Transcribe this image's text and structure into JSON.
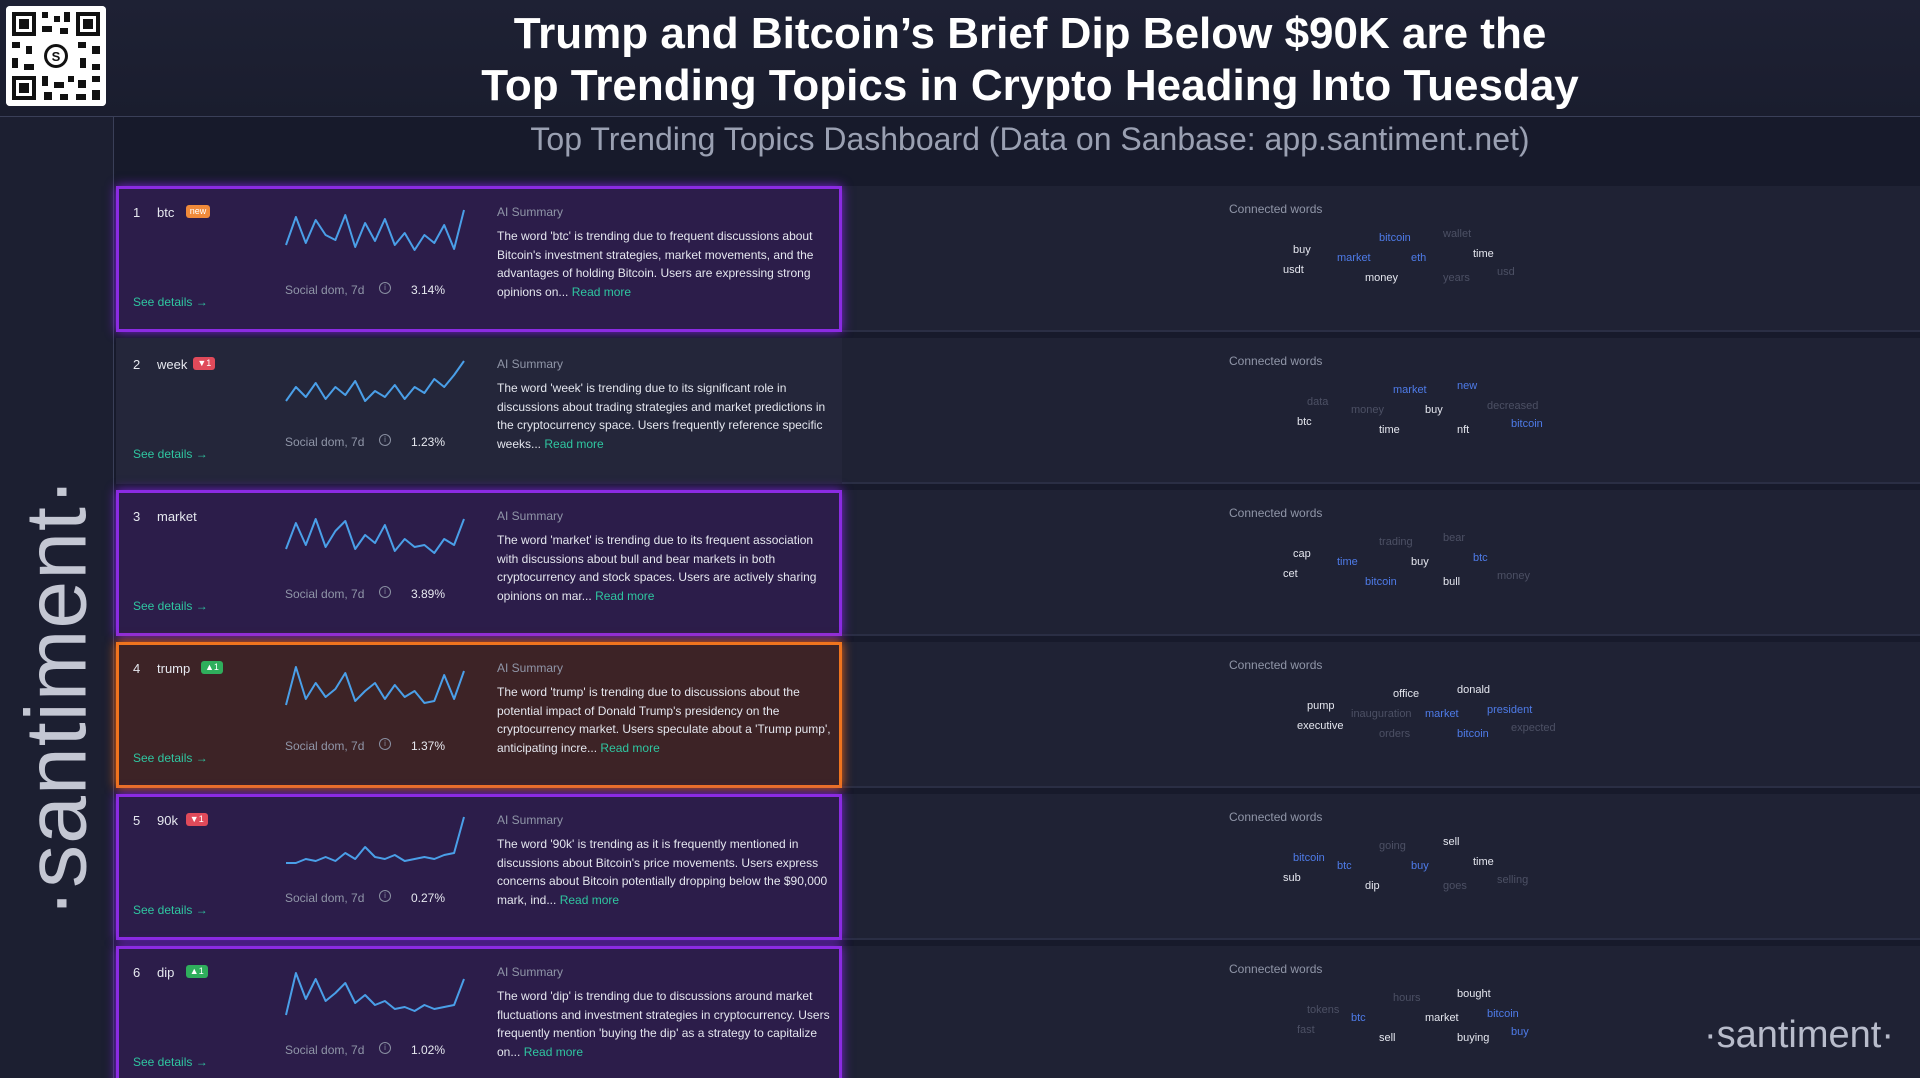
{
  "header": {
    "title_line1": "Trump and Bitcoin’s Brief Dip Below $90K are the",
    "title_line2": "Top Trending Topics in Crypto Heading Into Tuesday",
    "subtitle": "Top Trending Topics Dashboard (Data on Sanbase: app.santiment.net)"
  },
  "brand": {
    "sidebar": "·santiment·",
    "corner": "·santiment·"
  },
  "labels": {
    "ai_summary": "AI Summary",
    "connected_words": "Connected words",
    "social_dom": "Social dom, 7d",
    "see_details": "See details →",
    "read_more": "Read more"
  },
  "colors": {
    "accent_purple": "#8b2be2",
    "accent_orange": "#f0741e",
    "link": "#2fc6a0",
    "word_blue": "#4e7be8"
  },
  "topics": [
    {
      "rank": "1",
      "word": "btc",
      "badge": "new",
      "badge_type": "new",
      "social_dom": "3.14%",
      "highlight": "purple",
      "summary": "The word 'btc' is trending due to frequent discussions about Bitcoin's investment strategies, market movements, and the advantages of holding Bitcoin. Users are expressing strong opinions on...",
      "spark": [
        40,
        12,
        38,
        15,
        30,
        35,
        10,
        42,
        18,
        36,
        14,
        40,
        28,
        45,
        30,
        38,
        20,
        44,
        5
      ],
      "words": [
        {
          "t": "bitcoin",
          "c": "b"
        },
        {
          "t": "wallet",
          "c": "d"
        },
        {
          "t": "buy",
          "c": "w"
        },
        {
          "t": "time",
          "c": "w"
        },
        {
          "t": "market",
          "c": "b"
        },
        {
          "t": "eth",
          "c": "b"
        },
        {
          "t": "usdt",
          "c": "w"
        },
        {
          "t": "usd",
          "c": "d"
        },
        {
          "t": "money",
          "c": "w"
        },
        {
          "t": "years",
          "c": "d"
        }
      ]
    },
    {
      "rank": "2",
      "word": "week",
      "badge": "▼1",
      "badge_type": "down",
      "social_dom": "1.23%",
      "highlight": "none",
      "summary": "The word 'week' is trending due to its significant role in discussions about trading strategies and market predictions in the cryptocurrency space. Users frequently reference specific weeks...",
      "spark": [
        44,
        30,
        40,
        26,
        42,
        30,
        38,
        24,
        44,
        34,
        40,
        28,
        42,
        30,
        36,
        22,
        30,
        18,
        4
      ],
      "words": [
        {
          "t": "market",
          "c": "b"
        },
        {
          "t": "new",
          "c": "b"
        },
        {
          "t": "data",
          "c": "d"
        },
        {
          "t": "decreased",
          "c": "d"
        },
        {
          "t": "money",
          "c": "d"
        },
        {
          "t": "buy",
          "c": "w"
        },
        {
          "t": "btc",
          "c": "w"
        },
        {
          "t": "bitcoin",
          "c": "b"
        },
        {
          "t": "time",
          "c": "w"
        },
        {
          "t": "nft",
          "c": "w"
        }
      ]
    },
    {
      "rank": "3",
      "word": "market",
      "badge": "",
      "badge_type": "none",
      "social_dom": "3.89%",
      "highlight": "purple",
      "summary": "The word 'market' is trending due to its frequent association with discussions about bull and bear markets in both cryptocurrency and stock spaces. Users are actively sharing opinions on mar...",
      "spark": [
        40,
        14,
        36,
        10,
        38,
        22,
        12,
        40,
        26,
        34,
        16,
        42,
        30,
        38,
        36,
        44,
        30,
        36,
        10
      ],
      "words": [
        {
          "t": "trading",
          "c": "d"
        },
        {
          "t": "bear",
          "c": "d"
        },
        {
          "t": "cap",
          "c": "w"
        },
        {
          "t": "btc",
          "c": "b"
        },
        {
          "t": "time",
          "c": "b"
        },
        {
          "t": "buy",
          "c": "w"
        },
        {
          "t": "cet",
          "c": "w"
        },
        {
          "t": "money",
          "c": "d"
        },
        {
          "t": "bitcoin",
          "c": "b"
        },
        {
          "t": "bull",
          "c": "w"
        }
      ]
    },
    {
      "rank": "4",
      "word": "trump",
      "badge": "▲1",
      "badge_type": "up",
      "social_dom": "1.37%",
      "highlight": "orange",
      "summary": "The word 'trump' is trending due to discussions about the potential impact of Donald Trump's presidency on the cryptocurrency market. Users speculate about a 'Trump pump', anticipating incre...",
      "spark": [
        44,
        6,
        38,
        22,
        36,
        28,
        12,
        40,
        30,
        22,
        38,
        24,
        36,
        30,
        42,
        40,
        14,
        38,
        10
      ],
      "words": [
        {
          "t": "office",
          "c": "w"
        },
        {
          "t": "donald",
          "c": "w"
        },
        {
          "t": "pump",
          "c": "w"
        },
        {
          "t": "president",
          "c": "b"
        },
        {
          "t": "inauguration",
          "c": "d"
        },
        {
          "t": "market",
          "c": "b"
        },
        {
          "t": "executive",
          "c": "w"
        },
        {
          "t": "expected",
          "c": "d"
        },
        {
          "t": "orders",
          "c": "d"
        },
        {
          "t": "bitcoin",
          "c": "b"
        }
      ]
    },
    {
      "rank": "5",
      "word": "90k",
      "badge": "▼1",
      "badge_type": "down",
      "social_dom": "0.27%",
      "highlight": "purple",
      "summary": "The word '90k' is trending as it is frequently mentioned in discussions about Bitcoin's price movements. Users express concerns about Bitcoin potentially dropping below the $90,000 mark, ind...",
      "spark": [
        50,
        50,
        46,
        48,
        44,
        48,
        40,
        46,
        34,
        44,
        46,
        42,
        48,
        46,
        44,
        46,
        42,
        40,
        4
      ],
      "words": [
        {
          "t": "going",
          "c": "d"
        },
        {
          "t": "sell",
          "c": "w"
        },
        {
          "t": "bitcoin",
          "c": "b"
        },
        {
          "t": "time",
          "c": "w"
        },
        {
          "t": "btc",
          "c": "b"
        },
        {
          "t": "buy",
          "c": "b"
        },
        {
          "t": "sub",
          "c": "w"
        },
        {
          "t": "selling",
          "c": "d"
        },
        {
          "t": "dip",
          "c": "w"
        },
        {
          "t": "goes",
          "c": "d"
        }
      ]
    },
    {
      "rank": "6",
      "word": "dip",
      "badge": "▲1",
      "badge_type": "up",
      "social_dom": "1.02%",
      "highlight": "purple",
      "summary": "The word 'dip' is trending due to discussions around market fluctuations and investment strategies in cryptocurrency. Users frequently mention 'buying the dip' as a strategy to capitalize on...",
      "spark": [
        50,
        8,
        34,
        14,
        36,
        28,
        18,
        38,
        30,
        40,
        36,
        44,
        42,
        46,
        40,
        44,
        42,
        40,
        14
      ],
      "words": [
        {
          "t": "hours",
          "c": "d"
        },
        {
          "t": "bought",
          "c": "w"
        },
        {
          "t": "tokens",
          "c": "d"
        },
        {
          "t": "bitcoin",
          "c": "b"
        },
        {
          "t": "btc",
          "c": "b"
        },
        {
          "t": "market",
          "c": "w"
        },
        {
          "t": "fast",
          "c": "d"
        },
        {
          "t": "buy",
          "c": "b"
        },
        {
          "t": "sell",
          "c": "w"
        },
        {
          "t": "buying",
          "c": "w"
        }
      ]
    }
  ]
}
